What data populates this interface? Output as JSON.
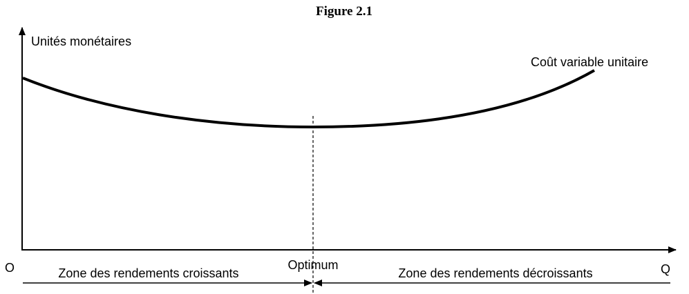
{
  "figure": {
    "title": "Figure 2.1",
    "y_axis_label": "Unités monétaires",
    "curve_label": "Coût variable unitaire",
    "origin_label": "O",
    "optimum_label": "Optimum",
    "x_axis_label": "Q",
    "zone_left": "Zone des rendements croissants",
    "zone_right": "Zone des rendements décroissants"
  }
}
